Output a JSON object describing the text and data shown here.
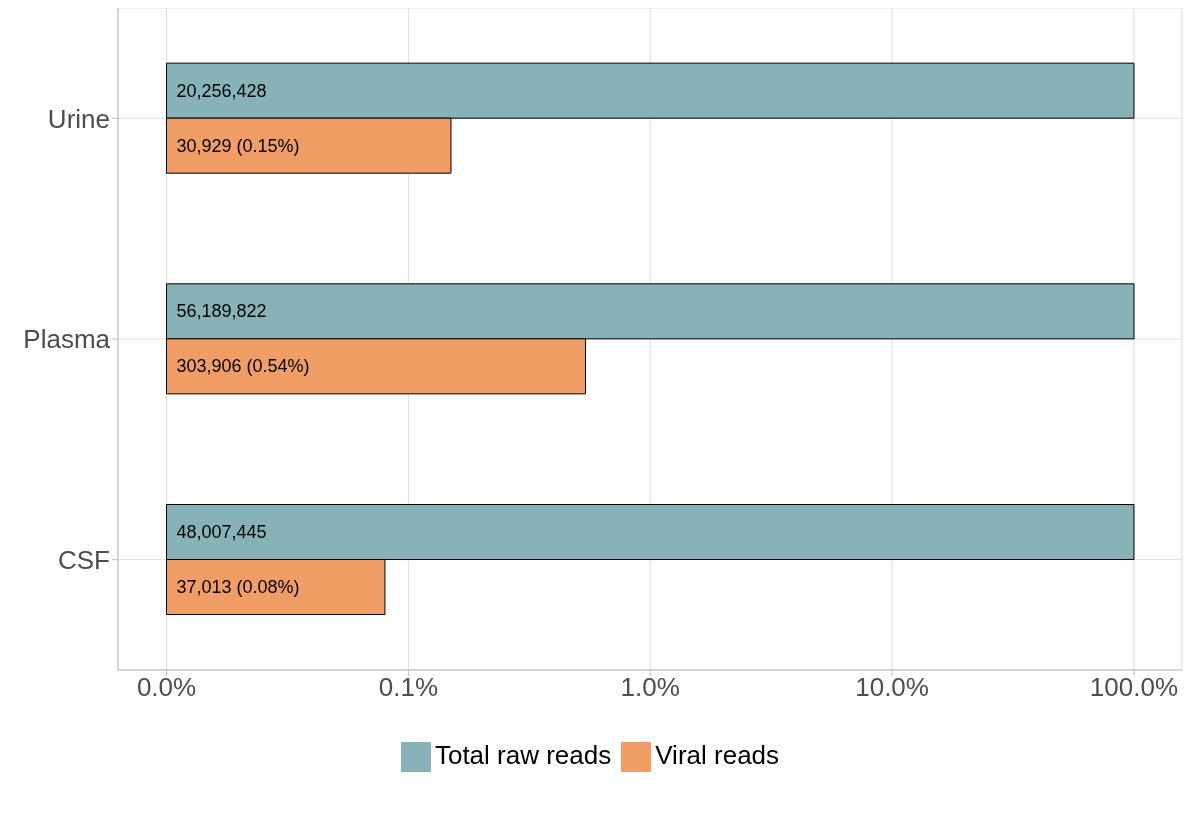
{
  "chart_data": {
    "type": "bar",
    "orientation": "horizontal",
    "categories": [
      "Urine",
      "Plasma",
      "CSF"
    ],
    "series": [
      {
        "name": "Total raw reads",
        "color": "#87b3b8",
        "values": [
          99.99,
          99.99,
          99.99
        ],
        "base": [
          0.01,
          0.01,
          0.01
        ]
      },
      {
        "name": "Viral reads",
        "color": "#f09e66",
        "values": [
          0.14,
          0.53,
          0.07
        ],
        "base": [
          0.01,
          0.01,
          0.01
        ]
      }
    ],
    "annotations": [
      {
        "text": "20,256,428",
        "y": "Urine"
      },
      {
        "text": "30,929 (0.15%)",
        "y": "Urine"
      },
      {
        "text": "56,189,822",
        "y": "Plasma"
      },
      {
        "text": "303,906 (0.54%)",
        "y": "Plasma"
      },
      {
        "text": "48,007,445",
        "y": "CSF"
      },
      {
        "text": "37,013 (0.08%)",
        "y": "CSF"
      }
    ],
    "log": "x",
    "xlim": [
      0.0063,
      158
    ],
    "xticks": [
      {
        "value": 0.01,
        "label": "0.0%"
      },
      {
        "value": 0.1,
        "label": "0.1%"
      },
      {
        "value": 1,
        "label": "1.0%"
      },
      {
        "value": 10,
        "label": "10.0%"
      },
      {
        "value": 100,
        "label": "100.0%"
      }
    ],
    "grid": true,
    "legend": "bottom"
  }
}
